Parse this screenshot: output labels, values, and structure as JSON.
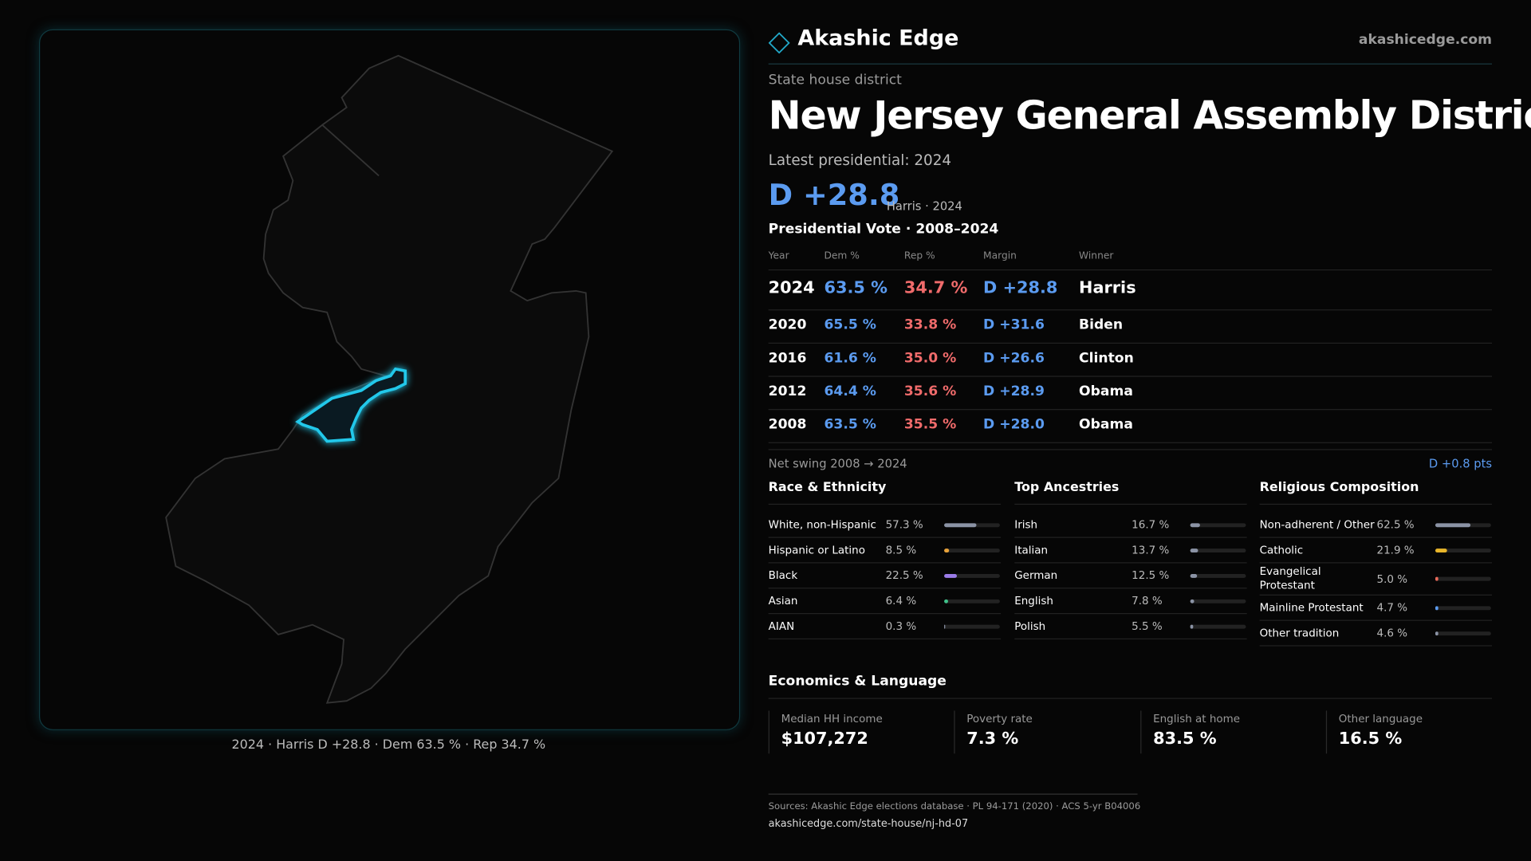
{
  "header": {
    "brand": "Akashic Edge",
    "site": "akashicedge.com"
  },
  "map": {
    "caption": "2024 · Harris D +28.8 · Dem 63.5 % · Rep 34.7 %"
  },
  "district": {
    "kicker": "State house district",
    "title": "New Jersey General Assembly District",
    "latest_label": "Latest presidential: 2024",
    "margin": "D +28.8",
    "margin_note": "Harris · 2024"
  },
  "vote_table": {
    "title": "Presidential Vote · 2008–2024",
    "columns": [
      "Year",
      "Dem %",
      "Rep %",
      "Margin",
      "Winner"
    ],
    "rows": [
      [
        "2024",
        "63.5 %",
        "34.7 %",
        "D +28.8",
        "Harris"
      ],
      [
        "2020",
        "65.5 %",
        "33.8 %",
        "D +31.6",
        "Biden"
      ],
      [
        "2016",
        "61.6 %",
        "35.0 %",
        "D +26.6",
        "Clinton"
      ],
      [
        "2012",
        "64.4 %",
        "35.6 %",
        "D +28.9",
        "Obama"
      ],
      [
        "2008",
        "63.5 %",
        "35.5 %",
        "D +28.0",
        "Obama"
      ]
    ]
  },
  "swing": {
    "label": "Net swing 2008 → 2024",
    "value": "D +0.8 pts"
  },
  "race": {
    "title": "Race & Ethnicity",
    "rows": [
      {
        "name": "White, non-Hispanic",
        "label": "57.3 %",
        "value": 57.3,
        "color": "#8b93a5"
      },
      {
        "name": "Hispanic or Latino",
        "label": "8.5 %",
        "value": 8.5,
        "color": "#e8a23a"
      },
      {
        "name": "Black",
        "label": "22.5 %",
        "value": 22.5,
        "color": "#9a7be8"
      },
      {
        "name": "Asian",
        "label": "6.4 %",
        "value": 6.4,
        "color": "#3fc28a"
      },
      {
        "name": "AIAN",
        "label": "0.3 %",
        "value": 0.3,
        "color": "#8b93a5"
      }
    ]
  },
  "ancestry": {
    "title": "Top Ancestries",
    "rows": [
      {
        "name": "Irish",
        "label": "16.7 %",
        "value": 16.7,
        "color": "#8b93a5"
      },
      {
        "name": "Italian",
        "label": "13.7 %",
        "value": 13.7,
        "color": "#8b93a5"
      },
      {
        "name": "German",
        "label": "12.5 %",
        "value": 12.5,
        "color": "#8b93a5"
      },
      {
        "name": "English",
        "label": "7.8 %",
        "value": 7.8,
        "color": "#8b93a5"
      },
      {
        "name": "Polish",
        "label": "5.5 %",
        "value": 5.5,
        "color": "#8b93a5"
      }
    ]
  },
  "religion": {
    "title": "Religious Composition",
    "rows": [
      {
        "name": "Non-adherent / Other",
        "label": "62.5 %",
        "value": 62.5,
        "color": "#8b93a5"
      },
      {
        "name": "Catholic",
        "label": "21.9 %",
        "value": 21.9,
        "color": "#e8b52a"
      },
      {
        "name": "Evangelical Protestant",
        "label": "5.0 %",
        "value": 5.0,
        "color": "#e86a5a"
      },
      {
        "name": "Mainline Protestant",
        "label": "4.7 %",
        "value": 4.7,
        "color": "#5b9bf0"
      },
      {
        "name": "Other tradition",
        "label": "4.6 %",
        "value": 4.6,
        "color": "#8b93a5"
      }
    ]
  },
  "economics": {
    "title": "Economics & Language",
    "cards": [
      {
        "label": "Median HH income",
        "value": "$107,272"
      },
      {
        "label": "Poverty rate",
        "value": "7.3 %"
      },
      {
        "label": "English at home",
        "value": "83.5 %"
      },
      {
        "label": "Other language",
        "value": "16.5 %"
      }
    ]
  },
  "footer": {
    "sources": "Sources: Akashic Edge elections database · PL 94-171 (2020) · ACS 5-yr B04006",
    "url": "akashicedge.com/state-house/nj-hd-07"
  }
}
